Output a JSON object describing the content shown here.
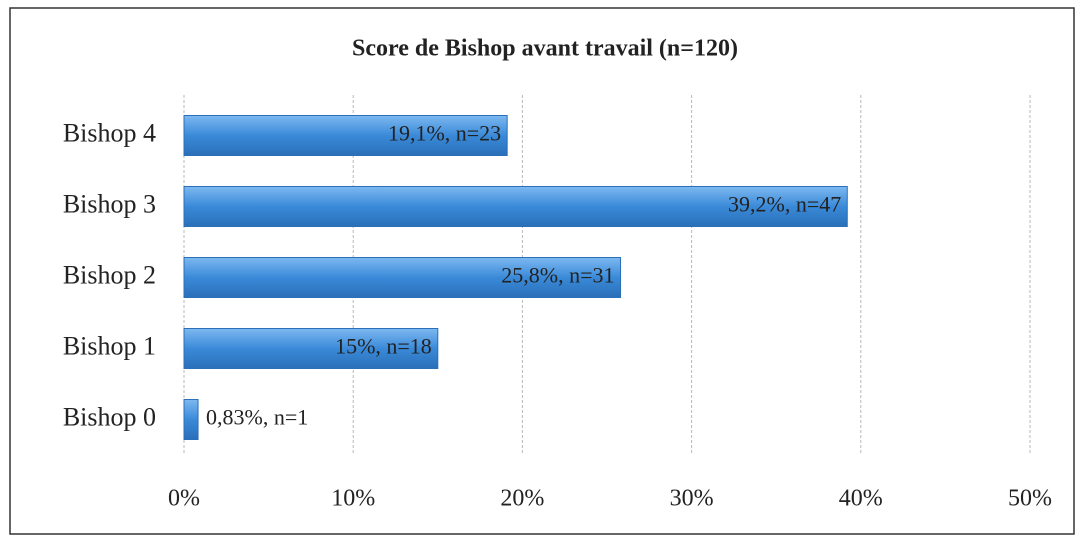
{
  "chart_data": {
    "type": "bar",
    "orientation": "horizontal",
    "title": "Score de Bishop avant travail (n=120)",
    "categories": [
      "Bishop 0",
      "Bishop 1",
      "Bishop 2",
      "Bishop 3",
      "Bishop 4"
    ],
    "values": [
      0.83,
      15,
      25.8,
      39.2,
      19.1
    ],
    "value_labels": [
      "0,83%, n=1",
      "15%, n=18",
      "25,8%, n=31",
      "39,2%, n=47",
      "19,1%, n=23"
    ],
    "color": "#3a8ad9",
    "xlim": [
      0,
      50
    ],
    "xticks": [
      {
        "value": 0,
        "label": "0%"
      },
      {
        "value": 10,
        "label": "10%"
      },
      {
        "value": 20,
        "label": "20%"
      },
      {
        "value": 30,
        "label": "30%"
      },
      {
        "value": 40,
        "label": "40%"
      },
      {
        "value": 50,
        "label": "50%"
      }
    ],
    "grid": true
  }
}
